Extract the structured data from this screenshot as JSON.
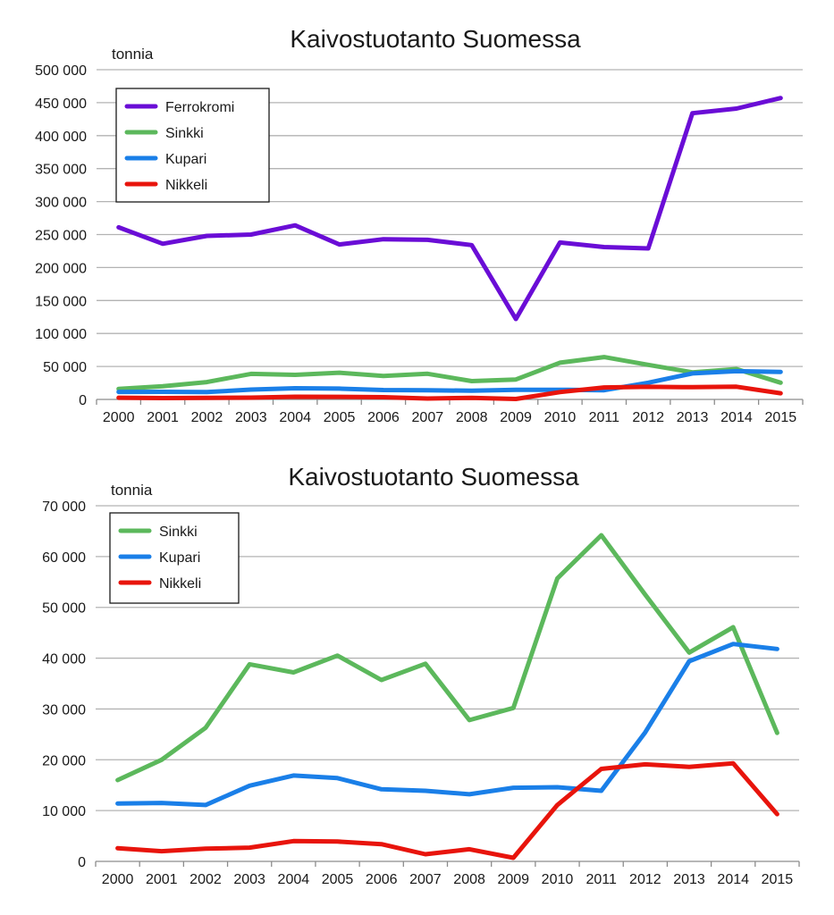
{
  "chart_data": [
    {
      "type": "line",
      "title": "Kaivostuotanto Suomessa",
      "ylabel": "tonnia",
      "xlabel": "",
      "x": [
        "2000",
        "2001",
        "2002",
        "2003",
        "2004",
        "2005",
        "2006",
        "2007",
        "2008",
        "2009",
        "2010",
        "2011",
        "2012",
        "2013",
        "2014",
        "2015"
      ],
      "ylim": [
        0,
        500000
      ],
      "yticks": [
        0,
        50000,
        100000,
        150000,
        200000,
        250000,
        300000,
        350000,
        400000,
        450000,
        500000
      ],
      "ytick_labels": [
        "0",
        "50 000",
        "100 000",
        "150 000",
        "200 000",
        "250 000",
        "300 000",
        "350 000",
        "400 000",
        "450 000",
        "500 000"
      ],
      "grid": true,
      "legend_position": "top-left",
      "series": [
        {
          "name": "Ferrokromi",
          "color": "#6a0dd6",
          "values": [
            261000,
            236000,
            248000,
            250000,
            264000,
            235000,
            243000,
            242000,
            234000,
            122000,
            238000,
            231000,
            229000,
            434000,
            441000,
            457000
          ]
        },
        {
          "name": "Sinkki",
          "color": "#5cb85c",
          "values": [
            16000,
            20000,
            26300,
            38800,
            37200,
            40500,
            35700,
            38900,
            27800,
            30200,
            55700,
            64200,
            52500,
            41100,
            46100,
            25300
          ]
        },
        {
          "name": "Kupari",
          "color": "#1a7fe8",
          "values": [
            11400,
            11500,
            11100,
            14900,
            16900,
            16400,
            14200,
            13900,
            13200,
            14500,
            14600,
            13900,
            25400,
            39400,
            42800,
            41800
          ]
        },
        {
          "name": "Nikkeli",
          "color": "#e8140c",
          "values": [
            2600,
            2000,
            2500,
            2700,
            4000,
            3900,
            3400,
            1400,
            2400,
            700,
            11100,
            18200,
            19100,
            18600,
            19300,
            9300
          ]
        }
      ]
    },
    {
      "type": "line",
      "title": "Kaivostuotanto Suomessa",
      "ylabel": "tonnia",
      "xlabel": "",
      "x": [
        "2000",
        "2001",
        "2002",
        "2003",
        "2004",
        "2005",
        "2006",
        "2007",
        "2008",
        "2009",
        "2010",
        "2011",
        "2012",
        "2013",
        "2014",
        "2015"
      ],
      "ylim": [
        0,
        70000
      ],
      "yticks": [
        0,
        10000,
        20000,
        30000,
        40000,
        50000,
        60000,
        70000
      ],
      "ytick_labels": [
        "0",
        "10 000",
        "20 000",
        "30 000",
        "40 000",
        "50 000",
        "60 000",
        "70 000"
      ],
      "grid": true,
      "legend_position": "top-left",
      "series": [
        {
          "name": "Sinkki",
          "color": "#5cb85c",
          "values": [
            16000,
            20000,
            26300,
            38800,
            37200,
            40500,
            35700,
            38900,
            27800,
            30200,
            55700,
            64200,
            52500,
            41100,
            46100,
            25300
          ]
        },
        {
          "name": "Kupari",
          "color": "#1a7fe8",
          "values": [
            11400,
            11500,
            11100,
            14900,
            16900,
            16400,
            14200,
            13900,
            13200,
            14500,
            14600,
            13900,
            25400,
            39400,
            42800,
            41800
          ]
        },
        {
          "name": "Nikkeli",
          "color": "#e8140c",
          "values": [
            2600,
            2000,
            2500,
            2700,
            4000,
            3900,
            3400,
            1400,
            2400,
            700,
            11100,
            18200,
            19100,
            18600,
            19300,
            9300
          ]
        }
      ]
    }
  ]
}
